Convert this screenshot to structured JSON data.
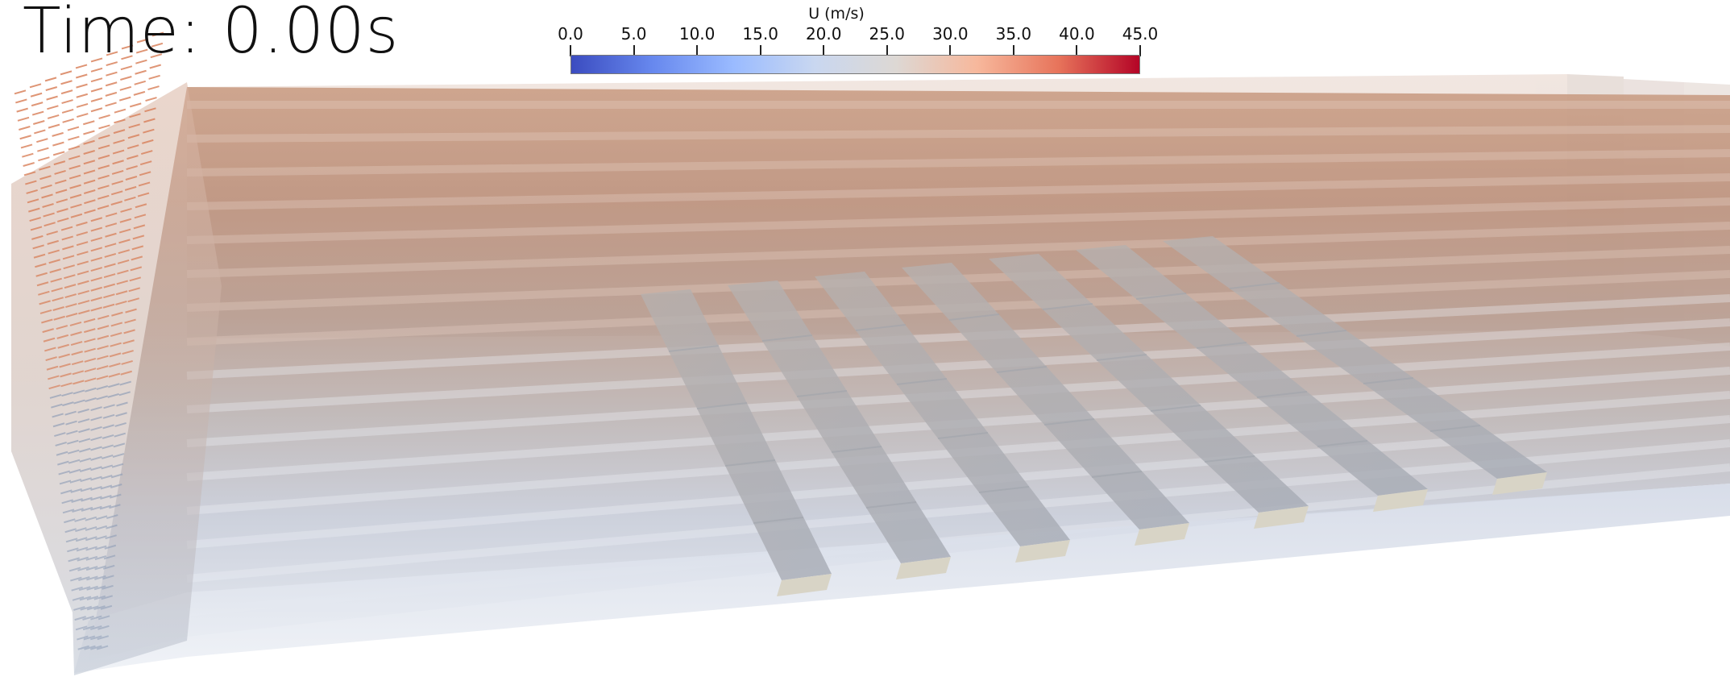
{
  "time_label": "Time: 0.00s",
  "colorbar": {
    "title": "U (m/s)",
    "min": 0.0,
    "max": 45.0,
    "ticks": [
      "0.0",
      "5.0",
      "10.0",
      "15.0",
      "20.0",
      "25.0",
      "30.0",
      "35.0",
      "40.0",
      "45.0"
    ],
    "colors": [
      "#3b4cc0",
      "#6788ee",
      "#9abbff",
      "#c9d7f0",
      "#ddd8d4",
      "#f7b89c",
      "#e7745b",
      "#b40426"
    ]
  },
  "scene": {
    "name": "velocity field with inclined plates",
    "plate_count": 7,
    "plate_color": "#a6aaaf",
    "floor_color": "#dfe4ee",
    "inlet_arrow_color": "#d77a52"
  }
}
